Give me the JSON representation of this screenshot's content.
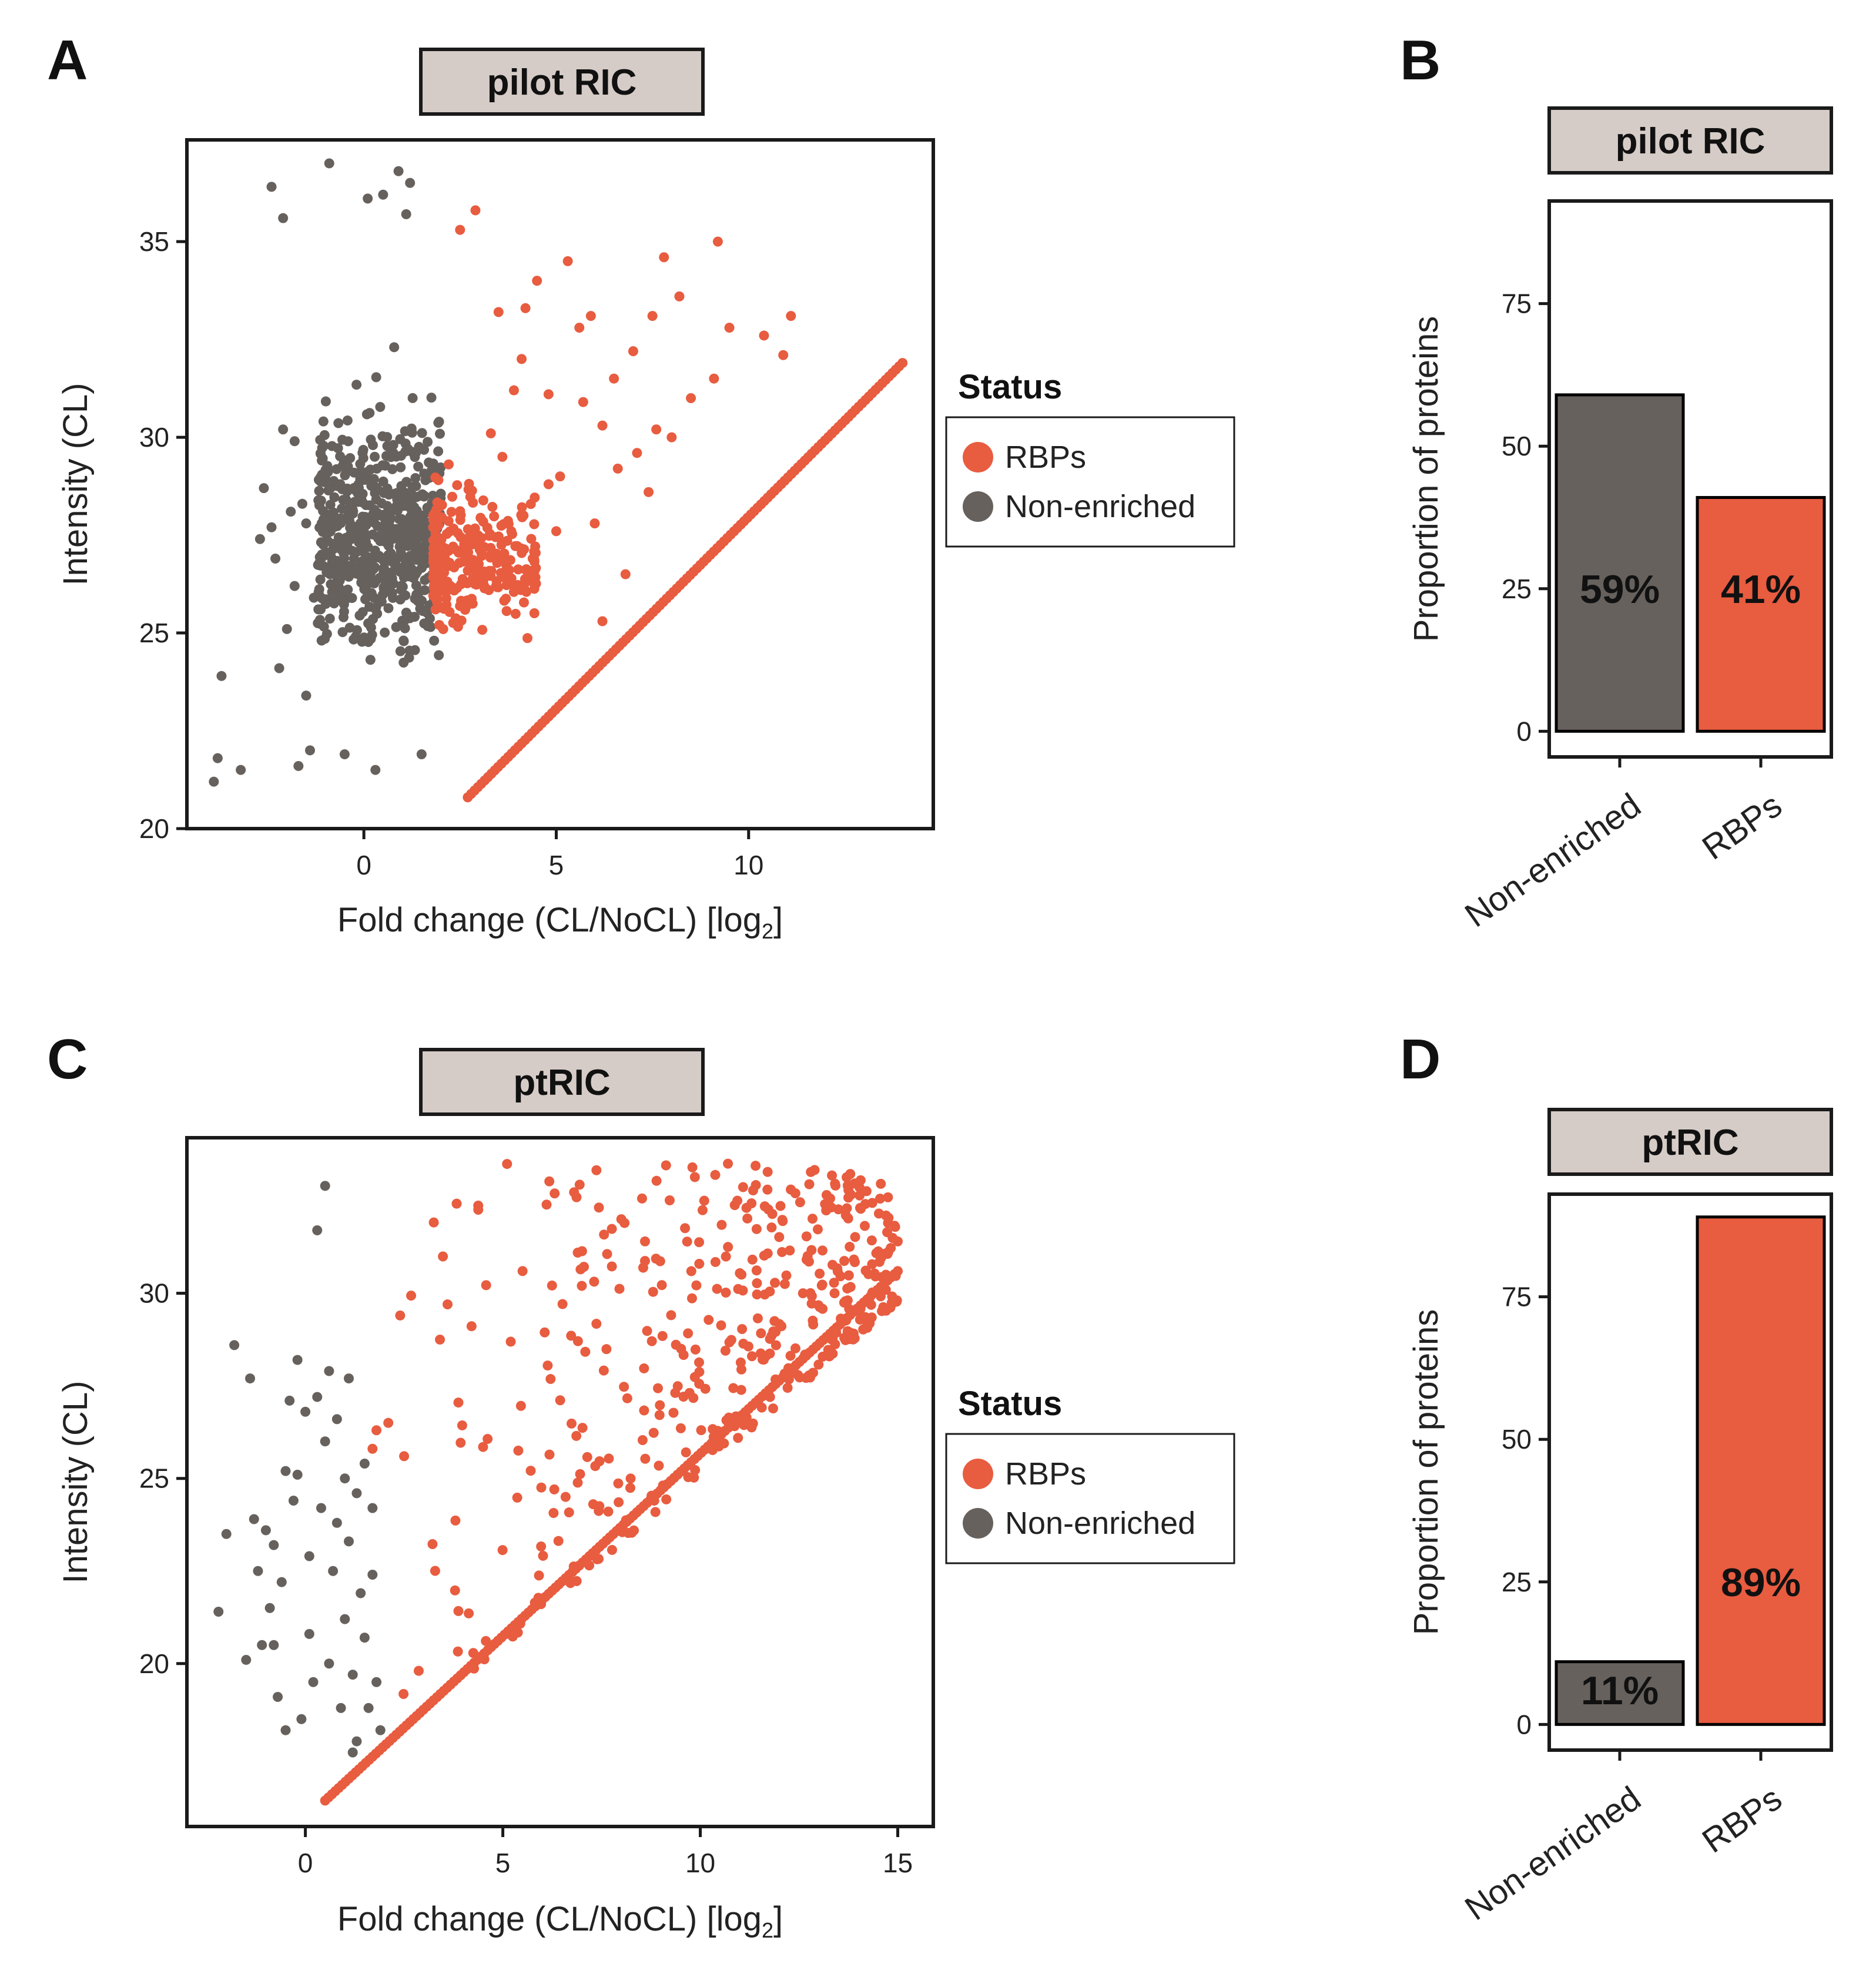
{
  "colors": {
    "rbp": "#E85C40",
    "nonenriched": "#66615D",
    "strip_fill": "#D6CCC7",
    "axis": "#1A1A1A"
  },
  "figure": {
    "panels": [
      {
        "id": "A",
        "letter": "A",
        "strip_title": "pilot RIC",
        "kind": "scatter",
        "legend": {
          "title": "Status",
          "items": [
            {
              "label": "RBPs",
              "color_key": "rbp"
            },
            {
              "label": "Non-enriched",
              "color_key": "nonenriched"
            }
          ]
        }
      },
      {
        "id": "B",
        "letter": "B",
        "strip_title": "pilot RIC",
        "kind": "bar"
      },
      {
        "id": "C",
        "letter": "C",
        "strip_title": "ptRIC",
        "kind": "scatter",
        "legend": {
          "title": "Status",
          "items": [
            {
              "label": "RBPs",
              "color_key": "rbp"
            },
            {
              "label": "Non-enriched",
              "color_key": "nonenriched"
            }
          ]
        }
      },
      {
        "id": "D",
        "letter": "D",
        "strip_title": "ptRIC",
        "kind": "bar"
      }
    ]
  },
  "chart_data": [
    {
      "panel": "A",
      "type": "scatter",
      "title": "pilot RIC",
      "xlabel": "Fold change (CL/NoCL) [log",
      "xlabel_sub": "2",
      "xlabel_end": "]",
      "ylabel": "Intensity (CL)",
      "xlim": [
        -4.6,
        14.8
      ],
      "ylim": [
        20,
        37.6
      ],
      "xticks": [
        0,
        5,
        10
      ],
      "yticks": [
        20,
        25,
        30,
        35
      ],
      "grid": false,
      "series": [
        {
          "name": "RBPs",
          "color_key": "rbp",
          "cloud": {
            "x_range": [
              1.8,
              4.5
            ],
            "y_mean": 26.8,
            "y_sd": 1.6,
            "count": 260
          },
          "diagonal": {
            "x_from": 2.7,
            "x_to": 14.0,
            "y_from": 20.8,
            "y_to": 31.9,
            "count": 130
          },
          "points": [
            [
              2.9,
              35.8
            ],
            [
              3.5,
              33.2
            ],
            [
              4.1,
              32.0
            ],
            [
              4.8,
              31.1
            ],
            [
              5.3,
              34.5
            ],
            [
              5.6,
              32.8
            ],
            [
              5.9,
              33.1
            ],
            [
              6.2,
              30.3
            ],
            [
              6.5,
              31.5
            ],
            [
              7.0,
              32.2
            ],
            [
              7.1,
              29.6
            ],
            [
              7.5,
              33.1
            ],
            [
              7.6,
              30.2
            ],
            [
              8.2,
              33.6
            ],
            [
              8.5,
              31.0
            ],
            [
              9.2,
              35.0
            ],
            [
              9.1,
              31.5
            ],
            [
              10.4,
              32.6
            ],
            [
              11.1,
              33.1
            ],
            [
              4.5,
              34.0
            ],
            [
              6.0,
              27.8
            ],
            [
              6.8,
              26.5
            ],
            [
              8.0,
              30.0
            ],
            [
              5.1,
              29.0
            ],
            [
              6.2,
              25.3
            ],
            [
              7.8,
              34.6
            ],
            [
              10.9,
              32.1
            ],
            [
              3.3,
              30.1
            ],
            [
              4.8,
              28.8
            ],
            [
              5.0,
              27.6
            ],
            [
              2.5,
              35.3
            ],
            [
              3.9,
              31.2
            ],
            [
              6.6,
              29.2
            ],
            [
              9.5,
              32.8
            ],
            [
              4.2,
              33.3
            ],
            [
              7.4,
              28.6
            ],
            [
              5.7,
              30.9
            ],
            [
              3.6,
              29.5
            ]
          ]
        },
        {
          "name": "Non-enriched",
          "color_key": "nonenriched",
          "cloud": {
            "x_range": [
              -1.2,
              2.0
            ],
            "y_mean": 27.5,
            "y_sd": 2.5,
            "count": 620
          },
          "points": [
            [
              -3.9,
              21.2
            ],
            [
              -3.8,
              21.8
            ],
            [
              -3.7,
              23.9
            ],
            [
              -3.2,
              21.5
            ],
            [
              -2.7,
              27.4
            ],
            [
              -2.6,
              28.7
            ],
            [
              -2.4,
              27.7
            ],
            [
              -2.4,
              36.4
            ],
            [
              -2.3,
              26.9
            ],
            [
              -2.2,
              24.1
            ],
            [
              -2.1,
              30.2
            ],
            [
              -2.1,
              35.6
            ],
            [
              -2.0,
              25.1
            ],
            [
              -1.9,
              28.1
            ],
            [
              -1.8,
              29.9
            ],
            [
              -1.8,
              26.2
            ],
            [
              -1.6,
              28.3
            ],
            [
              -1.5,
              23.4
            ],
            [
              -1.5,
              27.8
            ],
            [
              -1.4,
              22.0
            ],
            [
              -1.3,
              25.9
            ],
            [
              -0.9,
              37.0
            ],
            [
              -1.7,
              21.6
            ],
            [
              0.1,
              36.1
            ],
            [
              0.5,
              36.2
            ],
            [
              0.9,
              36.8
            ],
            [
              1.1,
              35.7
            ],
            [
              1.2,
              36.5
            ],
            [
              -0.5,
              21.9
            ],
            [
              0.3,
              21.5
            ],
            [
              1.5,
              21.9
            ]
          ]
        }
      ]
    },
    {
      "panel": "B",
      "type": "bar",
      "title": "pilot RIC",
      "categories": [
        "Non-enriched",
        "RBPs"
      ],
      "values": [
        59,
        41
      ],
      "labels": [
        "59%",
        "41%"
      ],
      "label_y": 25,
      "color_keys": [
        "nonenriched",
        "rbp"
      ],
      "ylabel": "Proportion of proteins",
      "xlabel": "",
      "ylim": [
        -4.5,
        93
      ],
      "yticks": [
        0,
        25,
        50,
        75
      ]
    },
    {
      "panel": "C",
      "type": "scatter",
      "title": "ptRIC",
      "xlabel": "Fold change (CL/NoCL) [log",
      "xlabel_sub": "2",
      "xlabel_end": "]",
      "ylabel": "Intensity (CL)",
      "xlim": [
        -3.0,
        15.9
      ],
      "ylim": [
        15.6,
        34.2
      ],
      "xticks": [
        0,
        5,
        10,
        15
      ],
      "yticks": [
        20,
        25,
        30
      ],
      "grid": false,
      "series": [
        {
          "name": "RBPs",
          "color_key": "rbp",
          "triangle": {
            "x_from": 1.5,
            "x_to": 15.0,
            "y_offset": 16.3,
            "y_slope": 0.93,
            "y_max": 33.5,
            "count": 430
          },
          "diagonal": {
            "x_from": 0.5,
            "x_to": 15.0,
            "y_from": 16.3,
            "y_to": 30.6,
            "count": 170
          },
          "points": [
            [
              9.8,
              33.4
            ],
            [
              10.7,
              33.5
            ],
            [
              11.7,
              32.8
            ],
            [
              8.0,
              32.0
            ],
            [
              8.6,
              31.4
            ],
            [
              5.5,
              30.6
            ],
            [
              7.0,
              30.2
            ],
            [
              2.4,
              29.4
            ],
            [
              3.6,
              29.7
            ],
            [
              10.1,
              32.5
            ],
            [
              15.0,
              31.4
            ],
            [
              14.7,
              30.5
            ],
            [
              12.6,
              30.0
            ],
            [
              13.4,
              30.0
            ],
            [
              1.8,
              26.3
            ],
            [
              2.1,
              26.5
            ],
            [
              1.7,
              25.8
            ],
            [
              2.5,
              25.6
            ]
          ]
        },
        {
          "name": "Non-enriched",
          "color_key": "nonenriched",
          "points": [
            [
              -2.2,
              21.4
            ],
            [
              -2.0,
              23.5
            ],
            [
              -1.8,
              28.6
            ],
            [
              -1.4,
              27.7
            ],
            [
              -1.3,
              23.9
            ],
            [
              -1.2,
              22.5
            ],
            [
              -1.1,
              20.5
            ],
            [
              -1.0,
              23.6
            ],
            [
              -0.9,
              21.5
            ],
            [
              -0.8,
              23.2
            ],
            [
              -0.7,
              19.1
            ],
            [
              -0.6,
              22.2
            ],
            [
              -0.5,
              25.2
            ],
            [
              -0.5,
              18.2
            ],
            [
              -0.4,
              27.1
            ],
            [
              -0.3,
              24.4
            ],
            [
              -0.2,
              25.1
            ],
            [
              -0.2,
              28.2
            ],
            [
              -0.1,
              18.5
            ],
            [
              0.0,
              26.8
            ],
            [
              0.1,
              20.8
            ],
            [
              0.1,
              22.9
            ],
            [
              0.2,
              19.5
            ],
            [
              0.3,
              27.2
            ],
            [
              0.3,
              31.7
            ],
            [
              0.4,
              24.2
            ],
            [
              0.5,
              32.9
            ],
            [
              0.6,
              27.9
            ],
            [
              0.6,
              20.0
            ],
            [
              0.7,
              22.5
            ],
            [
              0.8,
              26.6
            ],
            [
              0.8,
              23.8
            ],
            [
              0.9,
              18.8
            ],
            [
              1.0,
              21.2
            ],
            [
              1.1,
              27.7
            ],
            [
              1.1,
              23.3
            ],
            [
              1.2,
              19.7
            ],
            [
              1.3,
              24.6
            ],
            [
              1.3,
              17.9
            ],
            [
              1.4,
              21.9
            ],
            [
              1.5,
              25.4
            ],
            [
              1.5,
              20.7
            ],
            [
              1.6,
              18.8
            ],
            [
              1.7,
              22.4
            ],
            [
              1.8,
              19.5
            ],
            [
              1.2,
              17.6
            ],
            [
              1.9,
              18.2
            ],
            [
              -1.5,
              20.1
            ],
            [
              -0.8,
              20.5
            ],
            [
              0.5,
              26.0
            ],
            [
              1.0,
              25.0
            ],
            [
              1.7,
              24.2
            ]
          ]
        }
      ]
    },
    {
      "panel": "D",
      "type": "bar",
      "title": "ptRIC",
      "categories": [
        "Non-enriched",
        "RBPs"
      ],
      "values": [
        11,
        89
      ],
      "labels": [
        "11%",
        "89%"
      ],
      "label_y": [
        6,
        25
      ],
      "color_keys": [
        "nonenriched",
        "rbp"
      ],
      "ylabel": "Proportion of proteins",
      "xlabel": "",
      "ylim": [
        -4.5,
        93
      ],
      "yticks": [
        0,
        25,
        50,
        75
      ]
    }
  ]
}
